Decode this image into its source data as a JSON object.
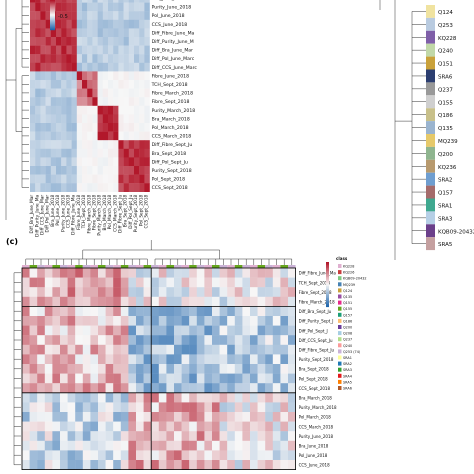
{
  "panel_c_label": "(c)",
  "chart_data": [
    {
      "type": "heatmap",
      "panel": "top-left correlation heatmap",
      "colorbar_ticks": [
        "-0.5"
      ],
      "row_labels": [
        "Bra_June_2018",
        "Purity_June_2018",
        "Pol_June_2018",
        "CCS_June_2018",
        "Diff_Fibre_June_Ma",
        "Diff_Purity_June_M",
        "Diff_Bra_June_Mar",
        "Diff_Pol_June_Marc",
        "Diff_CCS_June_Marc",
        "Fibre_June_2018",
        "TCH_Sept_2018",
        "Fibre_March_2018",
        "Fibre_Sept_2018",
        "Purity_March_2018",
        "Bra_March_2018",
        "Pol_March_2018",
        "CCS_March_2018",
        "Diff_Fibre_Sept_Ju",
        "Bra_Sept_2018",
        "Diff_Pol_Sept_Ju",
        "Purity_Sept_2018",
        "Pol_Sept_2018",
        "CCS_Sept_2018"
      ],
      "col_labels": [
        "Diff_Bra_June_Mar",
        "Diff_Purity_June_Ma",
        "Diff_CCS_June_Mar",
        "Diff_Pol_June_Mar",
        "Bra_June_2018",
        "Pol_June_2018",
        "Purity_June_2018",
        "CCS_June_2018",
        "Diff_Fibre_June_Ma",
        "Fibre_June_2018",
        "TCH_Sept_2018",
        "Fibre_March_2018",
        "Fibre_Sept_2018",
        "Purity_March_2018",
        "Bra_March_2018",
        "Pol_March_2018",
        "CCS_March_2018",
        "Diff_Fibre_Sept_Ju",
        "Bra_Sept_2018",
        "Diff_Pol_Sept_Ju",
        "Purity_Sept_2018",
        "Pol_Sept_2018",
        "CCS_Sept_2018"
      ],
      "blocks": [
        {
          "rows": [
            0,
            8
          ],
          "cols": [
            0,
            8
          ],
          "value": 0.85
        },
        {
          "rows": [
            9,
            12
          ],
          "cols": [
            9,
            12
          ],
          "value": 0.55
        },
        {
          "rows": [
            13,
            16
          ],
          "cols": [
            13,
            16
          ],
          "value": 0.9
        },
        {
          "rows": [
            17,
            22
          ],
          "cols": [
            17,
            22
          ],
          "value": 0.85
        },
        {
          "rows": [
            0,
            8
          ],
          "cols": [
            9,
            22
          ],
          "value": -0.3
        },
        {
          "rows": [
            9,
            22
          ],
          "cols": [
            0,
            8
          ],
          "value": -0.3
        }
      ]
    },
    {
      "type": "heatmap",
      "panel": "bottom clustered heatmap (c)",
      "legend_title": "class",
      "row_labels": [
        "Diff_Fibre_June_Ma",
        "TCH_Sept_2018",
        "Fibre_Sept_2018",
        "Fibre_March_2018",
        "Diff_Bra_Sept_Ju",
        "Diff_Purity_Sept_J",
        "Diff_Pol_Sept_J",
        "Diff_CCS_Sept_Ju",
        "Diff_Fibre_Sept_Ju",
        "Purity_Sept_2018",
        "Bra_Sept_2018",
        "Pol_Sept_2018",
        "CCS_Sept_2018",
        "Bra_March_2018",
        "Purity_March_2018",
        "Pol_March_2018",
        "CCS_March_2018",
        "Purity_June_2018",
        "Bra_June_2018",
        "Pol_June_2018",
        "CCS_June_2018"
      ],
      "class_labels": [
        "KQ228",
        "KQ226",
        "KQB09-20432",
        "MQ239",
        "Q124",
        "Q135",
        "Q151",
        "Q155",
        "Q157",
        "Q186",
        "Q200",
        "Q208",
        "Q237",
        "Q240",
        "Q253 (74)",
        "SRA1",
        "SRA2",
        "SRA3",
        "SRA4",
        "SRA5",
        "SRA6"
      ]
    },
    {
      "type": "dendrogram",
      "panel": "right cultivar dendrogram",
      "leaf_labels": [
        "Q124",
        "Q253",
        "KQ228",
        "Q240",
        "Q151",
        "SRA6",
        "Q237",
        "Q155",
        "Q186",
        "Q135",
        "MQ239",
        "Q200",
        "KQ236",
        "SRA2",
        "Q157",
        "SRA1",
        "SRA3",
        "KQB09-20432",
        "SRA5"
      ]
    }
  ],
  "colors": {
    "high": "#b2182b",
    "mid": "#f7f7f7",
    "low": "#2166ac"
  }
}
